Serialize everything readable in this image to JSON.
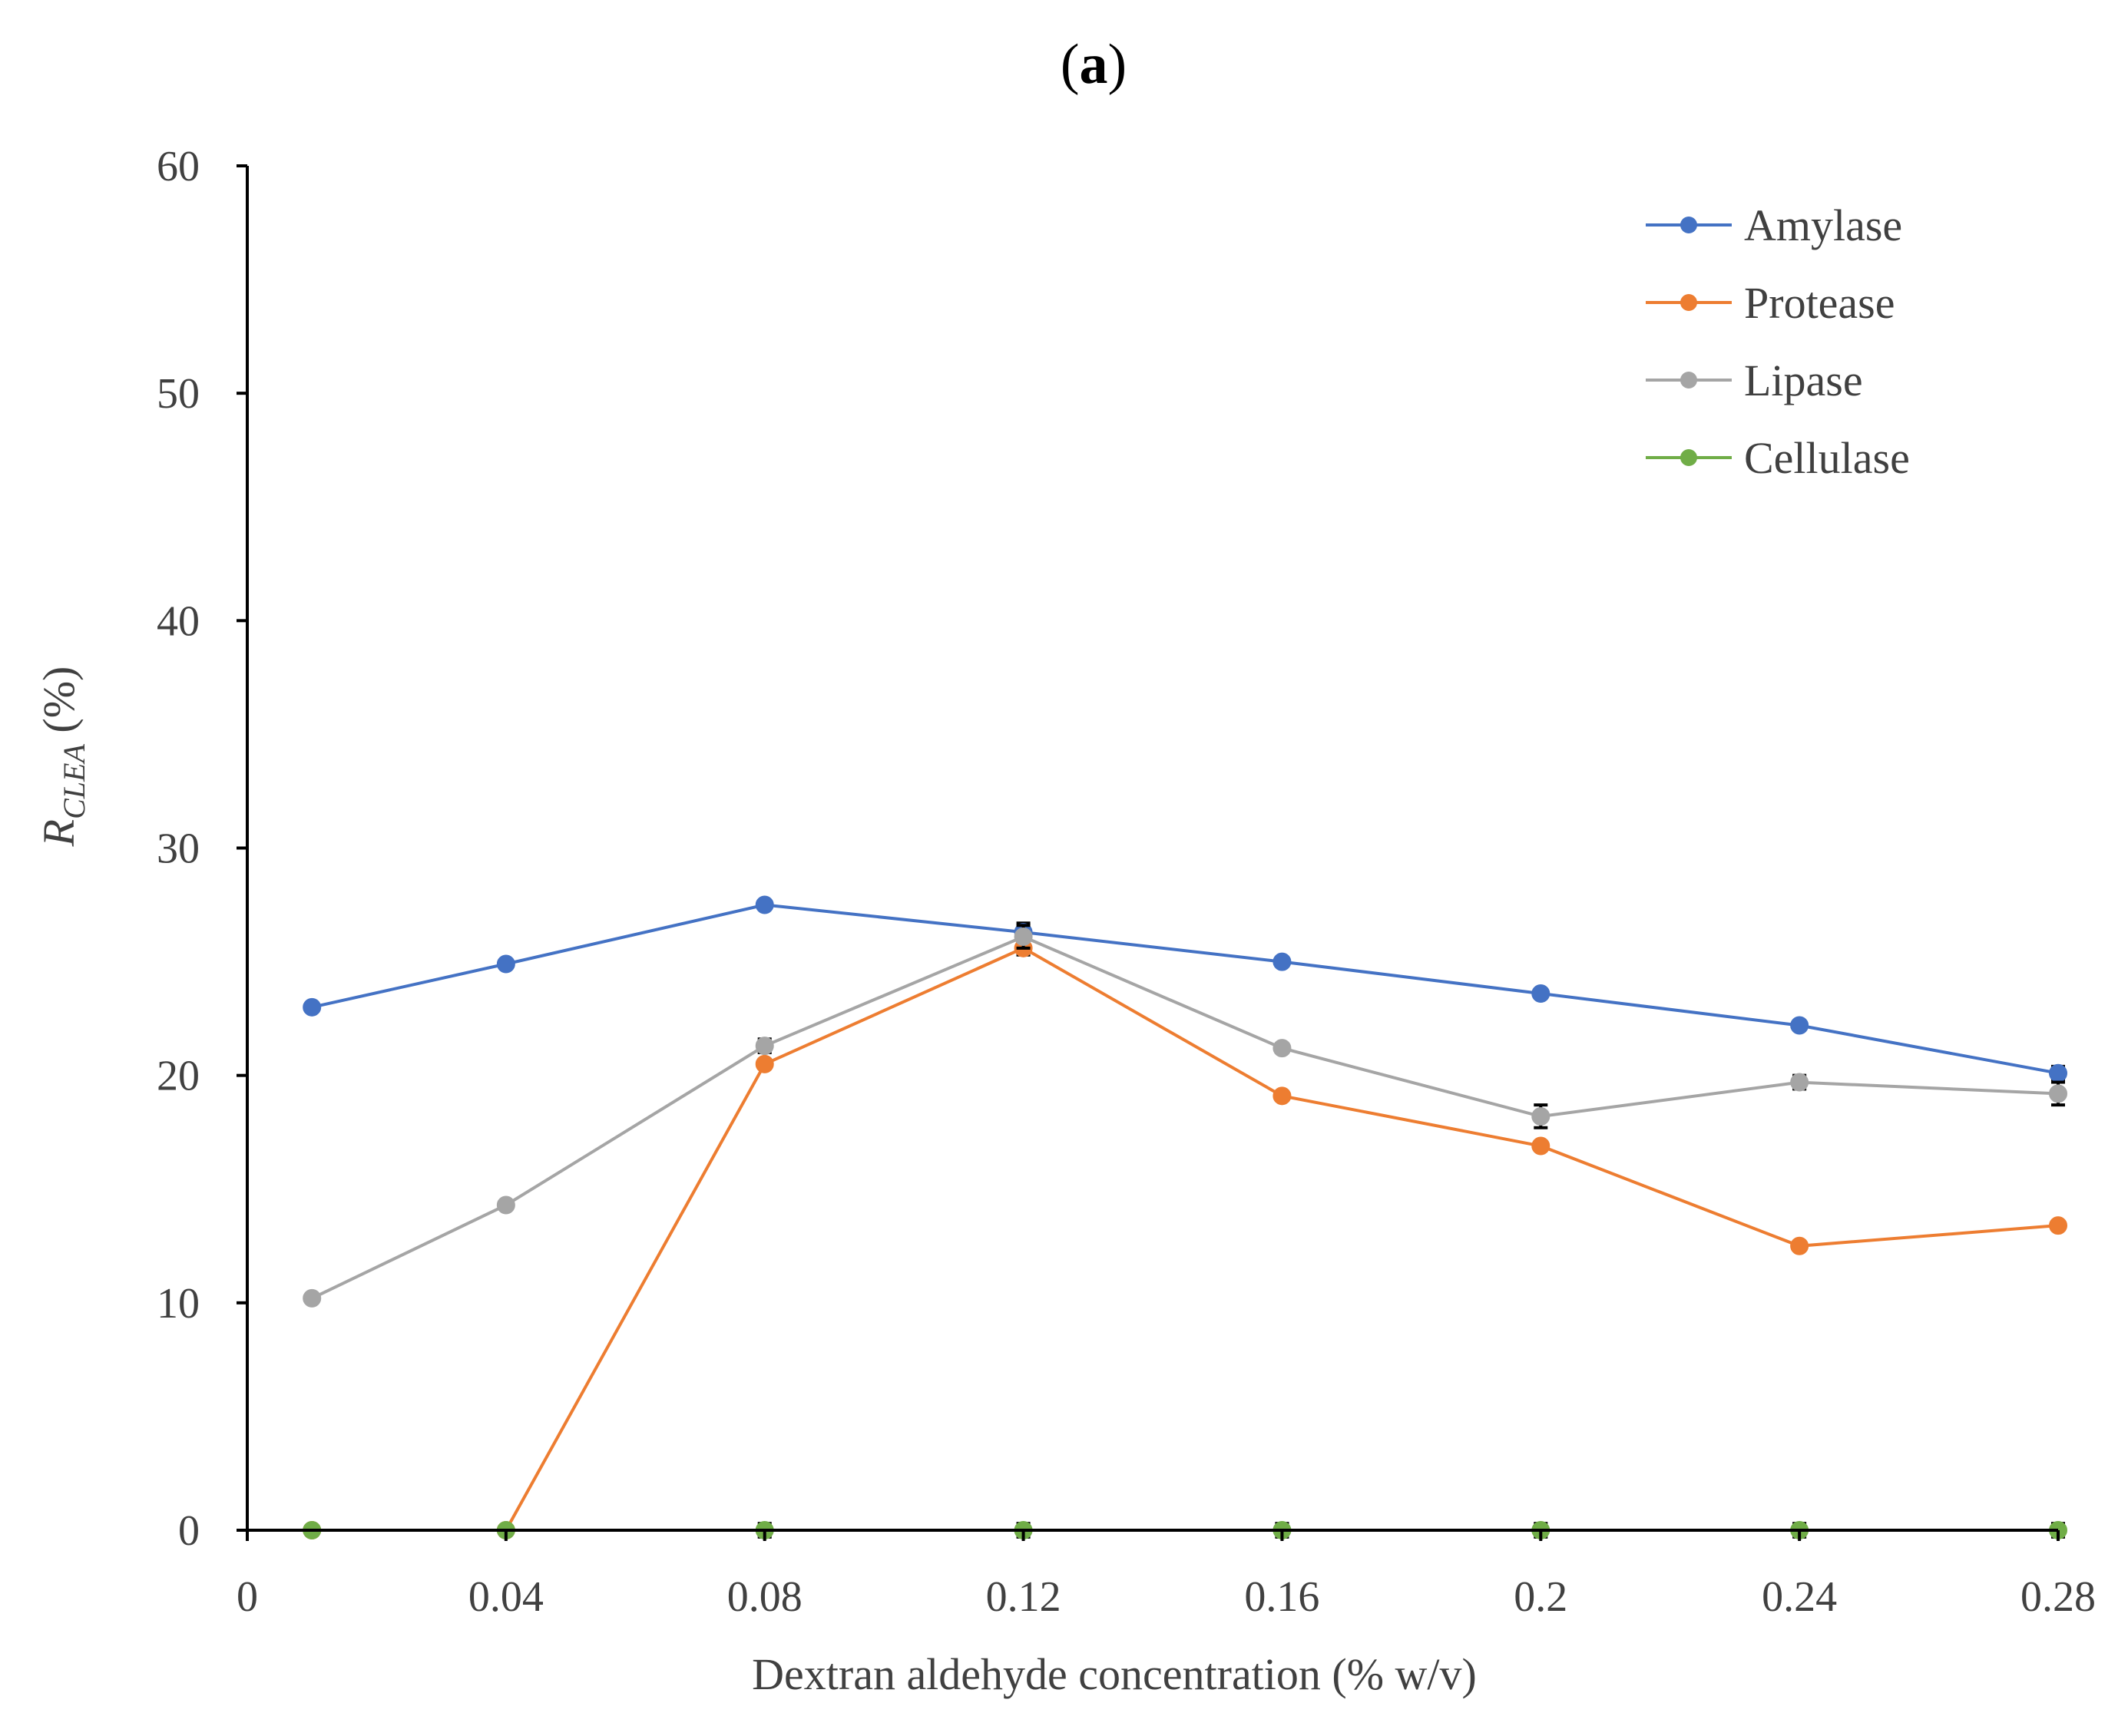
{
  "panel_label": {
    "open": "(",
    "letter": "a",
    "close": ")"
  },
  "chart_data": {
    "type": "line",
    "title": "(a)",
    "xlabel": "Dextran aldehyde concentration (% w/v)",
    "ylabel": {
      "main": "R",
      "subscript": "CLEA",
      "suffix": " (%)"
    },
    "xlim": [
      0,
      0.28
    ],
    "ylim": [
      0,
      60
    ],
    "x_ticks": [
      "0",
      "0.04",
      "0.08",
      "0.12",
      "0.16",
      "0.2",
      "0.24",
      "0.28"
    ],
    "x_tick_values": [
      0,
      0.04,
      0.08,
      0.12,
      0.16,
      0.2,
      0.24,
      0.28
    ],
    "y_ticks": [
      "0",
      "10",
      "20",
      "30",
      "40",
      "50",
      "60"
    ],
    "y_tick_values": [
      0,
      10,
      20,
      30,
      40,
      50,
      60
    ],
    "x": [
      0.01,
      0.04,
      0.08,
      0.12,
      0.16,
      0.2,
      0.24,
      0.28
    ],
    "legend_position": "top-right",
    "series": [
      {
        "name": "Amylase",
        "color": "#4472C4",
        "values": [
          23.0,
          24.9,
          27.5,
          26.3,
          25.0,
          23.6,
          22.2,
          20.1
        ],
        "errors": [
          0.15,
          0.15,
          0.15,
          0.4,
          0.15,
          0.2,
          0.2,
          0.3
        ]
      },
      {
        "name": "Protease",
        "color": "#ED7D31",
        "values": [
          0,
          0,
          20.5,
          25.6,
          19.1,
          16.9,
          12.5,
          13.4
        ],
        "errors": [
          0,
          0,
          0.2,
          0.3,
          0.2,
          0.2,
          0.15,
          0.15
        ]
      },
      {
        "name": "Lipase",
        "color": "#A5A5A5",
        "values": [
          10.2,
          14.3,
          21.3,
          26.1,
          21.2,
          18.2,
          19.7,
          19.2
        ],
        "errors": [
          0.15,
          0.15,
          0.3,
          0.5,
          0.2,
          0.5,
          0.3,
          0.5
        ]
      },
      {
        "name": "Cellulase",
        "color": "#70AD47",
        "values": [
          0,
          0,
          0,
          0,
          0,
          0,
          0,
          0
        ],
        "errors": [
          0,
          0,
          0.3,
          0.3,
          0.3,
          0.3,
          0.3,
          0.3
        ]
      }
    ]
  }
}
